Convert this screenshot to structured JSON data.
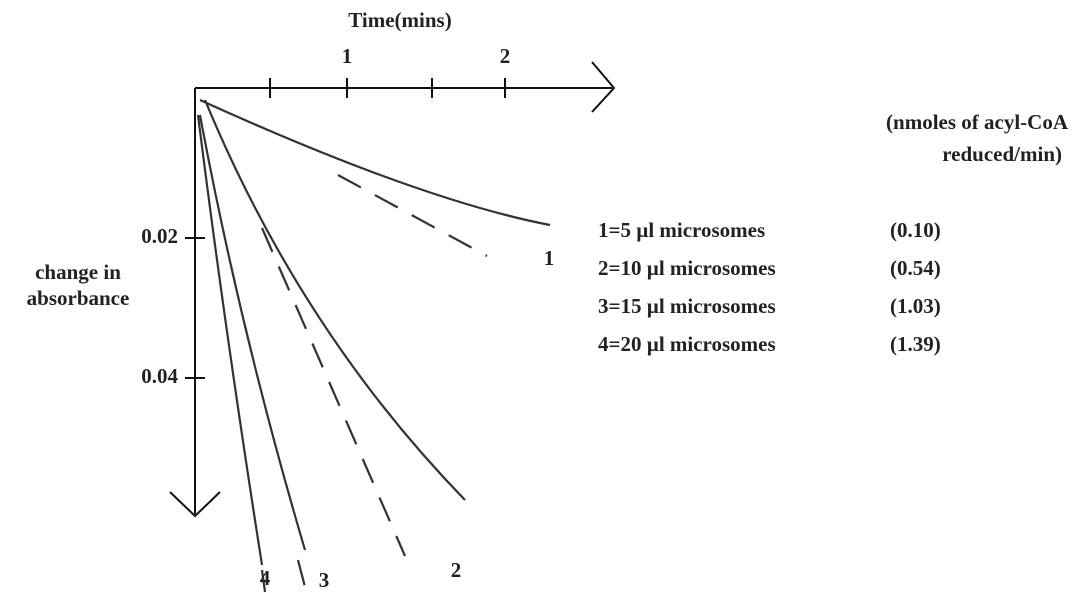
{
  "x_axis": {
    "title": "Time(mins)",
    "ticks": [
      "1",
      "2"
    ]
  },
  "y_axis": {
    "title_lines": [
      "change in",
      "absorbance"
    ],
    "ticks": [
      "0.02",
      "0.04"
    ]
  },
  "curve_labels": [
    "1",
    "2",
    "3",
    "4"
  ],
  "legend": {
    "header_lines": [
      "(nmoles of acyl-CoA",
      "reduced/min)"
    ],
    "rows": [
      {
        "label": "1=5 µl microsomes",
        "value": "(0.10)"
      },
      {
        "label": "2=10 µl microsomes",
        "value": "(0.54)"
      },
      {
        "label": "3=15 µl microsomes",
        "value": "(1.03)"
      },
      {
        "label": "4=20 µl microsomes",
        "value": "(1.39)"
      }
    ]
  }
}
